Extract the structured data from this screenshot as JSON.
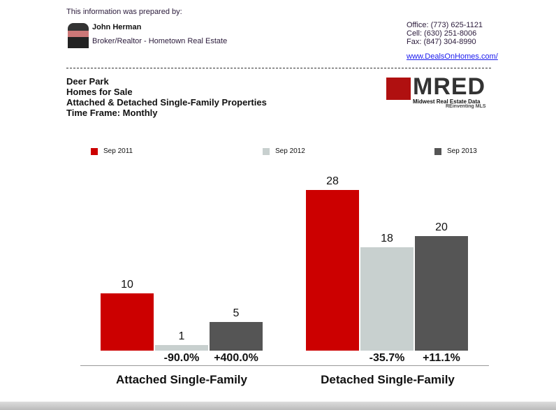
{
  "header": {
    "prepared_by": "This information was prepared by:",
    "agent_name": "John Herman",
    "agent_title": "Broker/Realtor - Hometown Real Estate",
    "office": "Office: (773) 625-1121",
    "cell": "Cell: (630) 251-8006",
    "fax": "Fax: (847) 304-8990",
    "website": "www.DealsOnHomes.com/"
  },
  "report": {
    "area": "Deer Park",
    "subject": "Homes for Sale",
    "property_types": "Attached & Detached Single-Family Properties",
    "time_frame": "Time Frame: Monthly"
  },
  "logo": {
    "text": "MRED",
    "sub1": "Midwest Real Estate Data",
    "sub2": "REinventing MLS"
  },
  "chart_data": {
    "type": "bar",
    "categories": [
      "Attached Single-Family",
      "Detached Single-Family"
    ],
    "series": [
      {
        "name": "Sep 2011",
        "color": "#cc0000",
        "values": [
          10,
          28
        ]
      },
      {
        "name": "Sep 2012",
        "color": "#c8d0cf",
        "values": [
          1,
          18
        ]
      },
      {
        "name": "Sep 2013",
        "color": "#555555",
        "values": [
          5,
          20
        ]
      }
    ],
    "changes": [
      [
        "-90.0%",
        "+400.0%"
      ],
      [
        "-35.7%",
        "+11.1%"
      ]
    ],
    "legend": "top",
    "ylim": [
      0,
      28
    ]
  }
}
